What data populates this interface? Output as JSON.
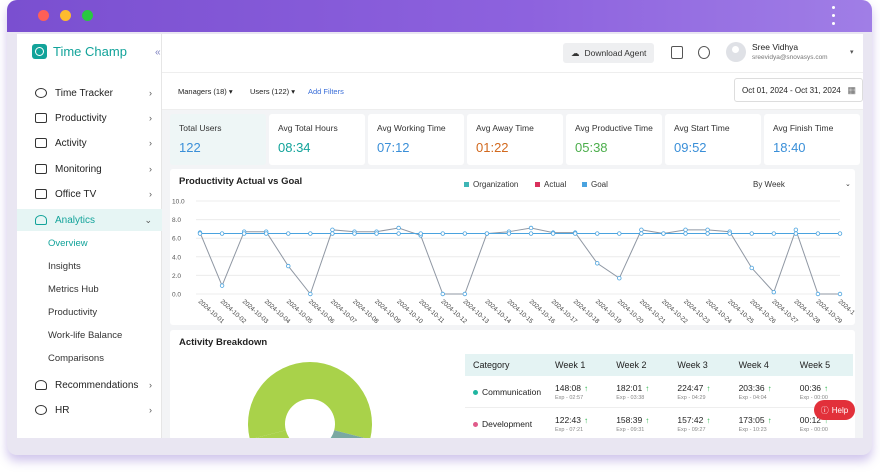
{
  "sidebar": {
    "logo": "Time Champ",
    "collapse": "«",
    "items": [
      {
        "label": "Time Tracker",
        "icon": "clock-icon"
      },
      {
        "label": "Productivity",
        "icon": "chart-icon"
      },
      {
        "label": "Activity",
        "icon": "activity-icon"
      },
      {
        "label": "Monitoring",
        "icon": "monitor-icon"
      },
      {
        "label": "Office TV",
        "icon": "tv-icon"
      },
      {
        "label": "Analytics",
        "icon": "bulb-icon"
      }
    ],
    "sub_items": [
      "Overview",
      "Insights",
      "Metrics Hub",
      "Productivity",
      "Work-life Balance",
      "Comparisons"
    ],
    "bottom_items": [
      {
        "label": "Recommendations",
        "icon": "bell-icon"
      },
      {
        "label": "HR",
        "icon": "user-icon"
      }
    ]
  },
  "header": {
    "download_label": "Download Agent",
    "user_name": "Sree Vidhya",
    "user_email": "sreevidya@snovasys.com"
  },
  "filters": {
    "managers": "Managers (18)",
    "users": "Users (122)",
    "add_filters": "Add Filters",
    "date_range": "Oct 01, 2024 - Oct 31, 2024"
  },
  "stats": [
    {
      "label": "Total Users",
      "value": "122",
      "color": "#3a8fd8"
    },
    {
      "label": "Avg Total Hours",
      "value": "08:34",
      "color": "#12a39a"
    },
    {
      "label": "Avg Working Time",
      "value": "07:12",
      "color": "#3a8fd8"
    },
    {
      "label": "Avg Away Time",
      "value": "01:22",
      "color": "#d2691e"
    },
    {
      "label": "Avg Productive Time",
      "value": "05:38",
      "color": "#4cae4c"
    },
    {
      "label": "Avg Start Time",
      "value": "09:52",
      "color": "#3a8fd8"
    },
    {
      "label": "Avg Finish Time",
      "value": "18:40",
      "color": "#3a8fd8"
    }
  ],
  "productivity_panel": {
    "title": "Productivity Actual vs Goal",
    "week_selector": "By Week",
    "legend": [
      {
        "name": "Organization",
        "color": "#3fb6b6"
      },
      {
        "name": "Actual",
        "color": "#d9305c"
      },
      {
        "name": "Goal",
        "color": "#4aa3df"
      }
    ]
  },
  "chart_data": {
    "type": "line",
    "x": [
      "2024-10-01",
      "2024-10-02",
      "2024-10-03",
      "2024-10-04",
      "2024-10-05",
      "2024-10-06",
      "2024-10-07",
      "2024-10-08",
      "2024-10-09",
      "2024-10-10",
      "2024-10-11",
      "2024-10-12",
      "2024-10-13",
      "2024-10-14",
      "2024-10-15",
      "2024-10-16",
      "2024-10-17",
      "2024-10-18",
      "2024-10-19",
      "2024-10-20",
      "2024-10-21",
      "2024-10-22",
      "2024-10-23",
      "2024-10-24",
      "2024-10-25",
      "2024-10-26",
      "2024-10-27",
      "2024-10-28",
      "2024-10-29",
      "2024-1"
    ],
    "y_ticks": [
      "10.0",
      "8.0",
      "6.0",
      "4.0",
      "2.0",
      "0.0"
    ],
    "ylim": [
      0,
      10
    ],
    "series": [
      {
        "name": "Organization",
        "color": "#8f97a3",
        "values": [
          6.6,
          0.9,
          6.7,
          6.7,
          3.0,
          0.0,
          6.9,
          6.7,
          6.7,
          7.1,
          6.3,
          0.0,
          0.0,
          6.5,
          6.7,
          7.1,
          6.6,
          6.6,
          3.3,
          1.7,
          6.9,
          6.5,
          6.9,
          6.9,
          6.7,
          2.8,
          0.2,
          6.9,
          0.0,
          0.0
        ]
      },
      {
        "name": "Goal",
        "color": "#4aa3df",
        "values": [
          6.5,
          6.5,
          6.5,
          6.5,
          6.5,
          6.5,
          6.5,
          6.5,
          6.5,
          6.5,
          6.5,
          6.5,
          6.5,
          6.5,
          6.5,
          6.5,
          6.5,
          6.5,
          6.5,
          6.5,
          6.5,
          6.5,
          6.5,
          6.5,
          6.5,
          6.5,
          6.5,
          6.5,
          6.5,
          6.5
        ]
      }
    ]
  },
  "activity_panel": {
    "title": "Activity Breakdown",
    "table": {
      "headers": [
        "Category",
        "Week 1",
        "Week 2",
        "Week 3",
        "Week 4",
        "Week 5"
      ],
      "rows": [
        {
          "category": "Communication",
          "color": "#1fb5a0",
          "cells": [
            {
              "value": "148:08",
              "exp": "Exp - 02:57"
            },
            {
              "value": "182:01",
              "exp": "Exp - 03:38"
            },
            {
              "value": "224:47",
              "exp": "Exp - 04:29"
            },
            {
              "value": "203:36",
              "exp": "Exp - 04:04"
            },
            {
              "value": "00:36",
              "exp": "Exp - 00:00"
            }
          ]
        },
        {
          "category": "Development",
          "color": "#e05b8a",
          "cells": [
            {
              "value": "122:43",
              "exp": "Exp - 07:21"
            },
            {
              "value": "158:39",
              "exp": "Exp - 09:31"
            },
            {
              "value": "157:42",
              "exp": "Exp - 09:27"
            },
            {
              "value": "173:05",
              "exp": "Exp - 10:23"
            },
            {
              "value": "00:12",
              "exp": "Exp - 00:00"
            }
          ]
        }
      ]
    },
    "donut": [
      {
        "name": "Development",
        "color": "#a9d24a",
        "value": 58
      },
      {
        "name": "seg-gray",
        "color": "#7aa8a2",
        "value": 5
      },
      {
        "name": "Communication",
        "color": "#1fb5a0",
        "value": 5
      },
      {
        "name": "seg-blue",
        "color": "#3a6ed8",
        "value": 6
      },
      {
        "name": "seg-pink",
        "color": "#e05b8a",
        "value": 5
      },
      {
        "name": "seg-lime",
        "color": "#a9d24a",
        "value": 21
      }
    ]
  },
  "help_label": "Help"
}
